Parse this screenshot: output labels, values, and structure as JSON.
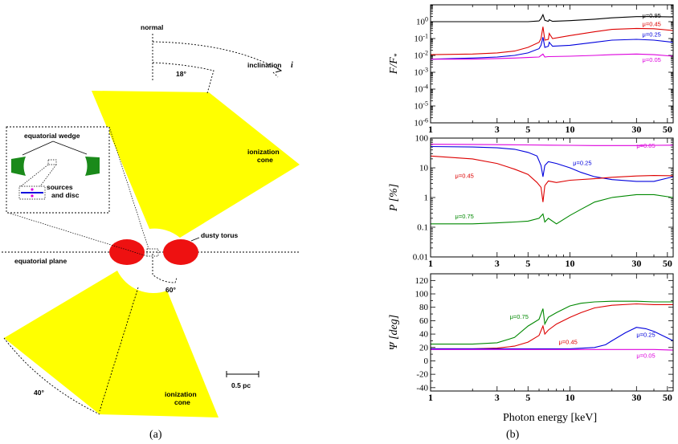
{
  "diagram": {
    "caption": "(a)",
    "labels": {
      "normal": "normal",
      "inclination": "inclination",
      "inclination_symbol": "i",
      "angle_18": "18°",
      "angle_60": "60°",
      "angle_40": "40°",
      "ionization_cone_top": [
        "ionization",
        "cone"
      ],
      "ionization_cone_bottom": [
        "ionization",
        "cone"
      ],
      "equatorial_wedge": "equatorial wedge",
      "sources_and_disc": [
        "sources",
        "and disc"
      ],
      "dusty_torus": "dusty torus",
      "equatorial_plane": "equatorial plane",
      "scale_bar": "0.5 pc"
    },
    "colors": {
      "cone": "#ffff00",
      "torus": "#ee1111",
      "wedge": "#1a8a1a",
      "disc": "#1111dd",
      "source": "#dd00dd"
    }
  },
  "chart_data": {
    "caption": "(b)",
    "type": "line",
    "xlabel": "Photon energy [keV]",
    "xscale": "log",
    "xlim": [
      1,
      55
    ],
    "xticks": [
      1,
      3,
      5,
      10,
      30,
      50
    ],
    "panels": [
      {
        "id": "flux",
        "ylabel_main": "F/F",
        "ylabel_sub": "*",
        "yscale": "log",
        "ylim": [
          1e-06,
          10
        ],
        "yticks": [
          {
            "v": 1e-06,
            "b": "10",
            "e": "-6"
          },
          {
            "v": 1e-05,
            "b": "10",
            "e": "-5"
          },
          {
            "v": 0.0001,
            "b": "10",
            "e": "-4"
          },
          {
            "v": 0.001,
            "b": "10",
            "e": "-3"
          },
          {
            "v": 0.01,
            "b": "10",
            "e": "-2"
          },
          {
            "v": 0.1,
            "b": "10",
            "e": "-1"
          },
          {
            "v": 1,
            "b": "10",
            "e": "0"
          }
        ],
        "series": [
          {
            "name": "μ=0.95",
            "color": "#000000",
            "label_at": [
              33,
              1.7
            ],
            "x": [
              1,
              3,
              5,
              6,
              6.2,
              6.4,
              6.6,
              7,
              7.1,
              7.5,
              10,
              15,
              20,
              30,
              40,
              55
            ],
            "y": [
              1.0,
              1.0,
              1.0,
              1.1,
              1.5,
              2.6,
              1.2,
              1.05,
              1.3,
              1.05,
              1.15,
              1.4,
              1.7,
              2.0,
              2.0,
              1.9
            ]
          },
          {
            "name": "μ=0.45",
            "color": "#dd0000",
            "label_at": [
              33,
              0.55
            ],
            "x": [
              1,
              2,
              3,
              4,
              5,
              6,
              6.2,
              6.4,
              6.6,
              7,
              7.1,
              7.5,
              10,
              15,
              20,
              30,
              40,
              55
            ],
            "y": [
              0.011,
              0.012,
              0.014,
              0.018,
              0.03,
              0.06,
              0.1,
              0.5,
              0.08,
              0.09,
              0.2,
              0.1,
              0.15,
              0.25,
              0.35,
              0.4,
              0.38,
              0.3
            ]
          },
          {
            "name": "μ=0.25",
            "color": "#0000dd",
            "label_at": [
              33,
              0.13
            ],
            "x": [
              1,
              2,
              3,
              4,
              5,
              6,
              6.2,
              6.4,
              6.6,
              7,
              7.1,
              7.5,
              10,
              15,
              20,
              30,
              40,
              55
            ],
            "y": [
              0.006,
              0.007,
              0.008,
              0.01,
              0.014,
              0.025,
              0.04,
              0.12,
              0.03,
              0.035,
              0.06,
              0.035,
              0.04,
              0.06,
              0.08,
              0.09,
              0.08,
              0.06
            ]
          },
          {
            "name": "μ=0.05",
            "color": "#dd00dd",
            "label_at": [
              33,
              0.0042
            ],
            "x": [
              1,
              2,
              3,
              4,
              5,
              6,
              6.4,
              6.6,
              7,
              10,
              15,
              20,
              30,
              40,
              55
            ],
            "y": [
              0.006,
              0.006,
              0.0065,
              0.007,
              0.0075,
              0.008,
              0.012,
              0.008,
              0.0085,
              0.009,
              0.01,
              0.011,
              0.012,
              0.011,
              0.009
            ]
          }
        ]
      },
      {
        "id": "polarization",
        "ylabel_main": "P [%]",
        "yscale": "log",
        "ylim": [
          0.01,
          100
        ],
        "yticks": [
          {
            "v": 0.01,
            "t": "0.01"
          },
          {
            "v": 0.1,
            "t": "0.1"
          },
          {
            "v": 1,
            "t": "1"
          },
          {
            "v": 10,
            "t": "10"
          },
          {
            "v": 100,
            "t": "100"
          }
        ],
        "series": [
          {
            "name": "μ=0.05",
            "color": "#dd00dd",
            "label_at": [
              30,
              48
            ],
            "x": [
              1,
              2,
              3,
              5,
              7,
              10,
              15,
              20,
              30,
              40,
              55
            ],
            "y": [
              62,
              61,
              60,
              59,
              58,
              57,
              56,
              56,
              56,
              57,
              58
            ]
          },
          {
            "name": "μ=0.25",
            "color": "#0000dd",
            "label_at": [
              10.5,
              12.5
            ],
            "x": [
              1,
              2,
              3,
              4,
              5,
              5.8,
              6.2,
              6.4,
              6.6,
              7,
              8,
              10,
              12,
              15,
              20,
              30,
              40,
              55
            ],
            "y": [
              52,
              50,
              47,
              42,
              33,
              25,
              12,
              5,
              12,
              16,
              14,
              10,
              7,
              5,
              4,
              3.5,
              3.5,
              5
            ]
          },
          {
            "name": "μ=0.45",
            "color": "#dd0000",
            "label_at": [
              1.5,
              4.6
            ],
            "x": [
              1,
              2,
              3,
              4,
              5,
              5.8,
              6.2,
              6.4,
              6.6,
              7,
              8,
              10,
              15,
              20,
              30,
              40,
              55
            ],
            "y": [
              25,
              20,
              14,
              9,
              6,
              3.2,
              2.2,
              0.7,
              2.5,
              3.6,
              3.2,
              3.8,
              4.3,
              4.8,
              5.3,
              5.5,
              5.4
            ]
          },
          {
            "name": "μ=0.75",
            "color": "#008800",
            "label_at": [
              1.5,
              0.2
            ],
            "x": [
              1,
              2,
              3,
              4,
              5,
              6,
              6.4,
              6.6,
              7,
              8,
              10,
              12,
              15,
              20,
              30,
              40,
              55
            ],
            "y": [
              0.13,
              0.13,
              0.14,
              0.15,
              0.16,
              0.2,
              0.28,
              0.15,
              0.2,
              0.13,
              0.25,
              0.4,
              0.7,
              1.0,
              1.25,
              1.25,
              1.0
            ]
          }
        ]
      },
      {
        "id": "angle",
        "ylabel_main": "Ψ [deg]",
        "yscale": "linear",
        "ylim": [
          -45,
          130
        ],
        "yticks": [
          {
            "v": -40,
            "t": "-40"
          },
          {
            "v": -20,
            "t": "-20"
          },
          {
            "v": 0,
            "t": "0"
          },
          {
            "v": 20,
            "t": "20"
          },
          {
            "v": 40,
            "t": "40"
          },
          {
            "v": 60,
            "t": "60"
          },
          {
            "v": 80,
            "t": "80"
          },
          {
            "v": 100,
            "t": "100"
          },
          {
            "v": 120,
            "t": "120"
          }
        ],
        "series": [
          {
            "name": "μ=0.75",
            "color": "#008800",
            "label_at": [
              3.7,
              63
            ],
            "x": [
              1,
              2,
              3,
              4,
              5,
              6,
              6.4,
              6.6,
              7,
              8,
              10,
              12,
              15,
              20,
              30,
              40,
              55
            ],
            "y": [
              25,
              25,
              27,
              35,
              52,
              62,
              78,
              55,
              65,
              72,
              82,
              86,
              88,
              89,
              89,
              88,
              88
            ]
          },
          {
            "name": "μ=0.45",
            "color": "#dd0000",
            "label_at": [
              8.3,
              25
            ],
            "x": [
              1,
              2,
              3,
              4,
              5,
              6,
              6.4,
              6.6,
              7,
              8,
              10,
              12,
              15,
              20,
              30,
              40,
              55
            ],
            "y": [
              18,
              18,
              19,
              22,
              28,
              38,
              52,
              40,
              46,
              55,
              65,
              72,
              79,
              83,
              85,
              84,
              84
            ]
          },
          {
            "name": "μ=0.25",
            "color": "#0000dd",
            "label_at": [
              30,
              36
            ],
            "x": [
              1,
              3,
              5,
              10,
              15,
              18,
              20,
              25,
              30,
              35,
              40,
              55
            ],
            "y": [
              18,
              18,
              18,
              18,
              20,
              24,
              30,
              42,
              50,
              48,
              44,
              30
            ]
          },
          {
            "name": "μ=0.05",
            "color": "#dd00dd",
            "label_at": [
              30,
              5
            ],
            "x": [
              1,
              3,
              5,
              10,
              20,
              30,
              40,
              55
            ],
            "y": [
              17,
              17,
              17,
              17,
              17,
              17,
              17,
              16
            ]
          }
        ]
      }
    ]
  }
}
